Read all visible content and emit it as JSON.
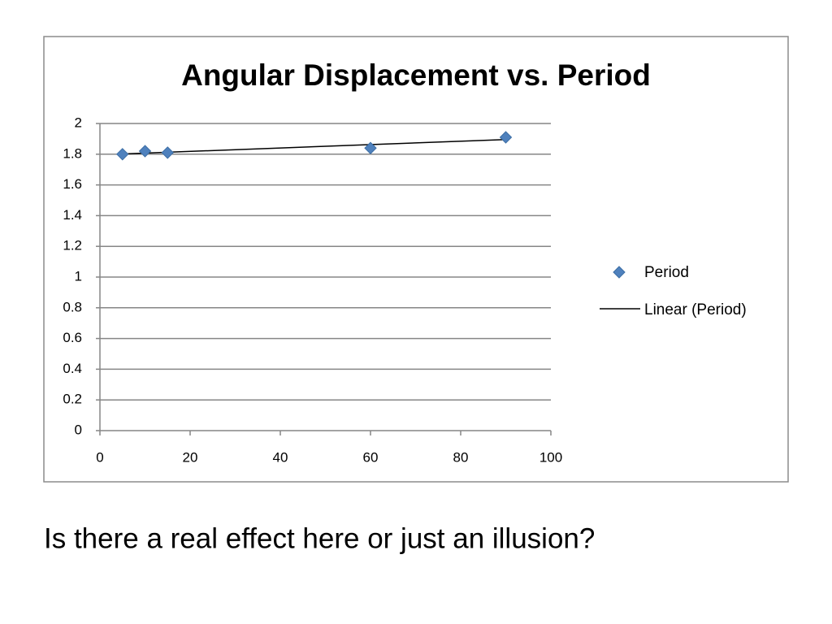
{
  "chart_data": {
    "type": "scatter",
    "title": "Angular Displacement vs. Period",
    "x": [
      5,
      10,
      15,
      60,
      90
    ],
    "series": [
      {
        "name": "Period",
        "color": "#4f81bd",
        "values": [
          1.8,
          1.82,
          1.81,
          1.84,
          1.91
        ]
      }
    ],
    "trendline": {
      "name": "Linear (Period)",
      "color": "#000000"
    },
    "xlim": [
      0,
      100
    ],
    "xticks": [
      0,
      20,
      40,
      60,
      80,
      100
    ],
    "ylim": [
      0,
      2
    ],
    "yticks": [
      0,
      0.2,
      0.4,
      0.6,
      0.8,
      1,
      1.2,
      1.4,
      1.6,
      1.8,
      2
    ],
    "grid": true,
    "legend": "right"
  },
  "caption": "Is there a real effect here or just an illusion?"
}
